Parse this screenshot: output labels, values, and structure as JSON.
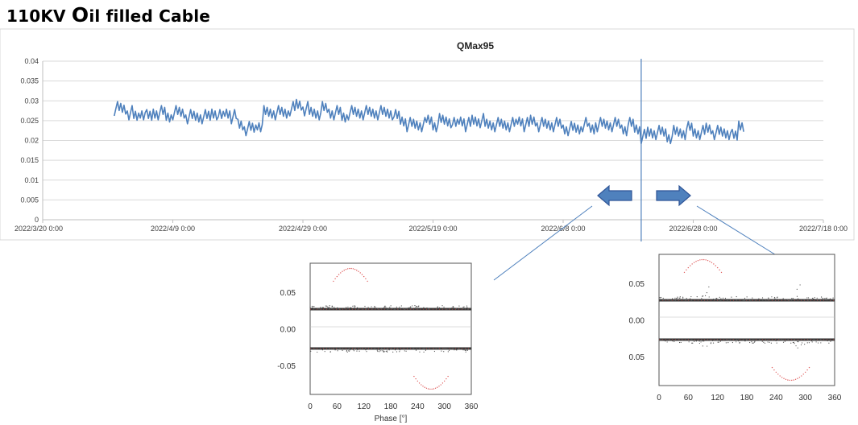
{
  "slide": {
    "title_prefix": "110KV ",
    "title_o": "O",
    "title_suffix": "il filled Cable"
  },
  "chart_data": [
    {
      "type": "line",
      "title": "QMax95",
      "xlabel": "",
      "ylabel": "",
      "x_range": [
        "2022/3/20 0:00",
        "2022/7/18 0:00"
      ],
      "x_ticks": [
        "2022/3/20 0:00",
        "2022/4/9 0:00",
        "2022/4/29 0:00",
        "2022/5/19 0:00",
        "2022/6/8 0:00",
        "2022/6/28 0:00",
        "2022/7/18 0:00"
      ],
      "ylim": [
        0,
        0.04
      ],
      "y_ticks": [
        "0",
        "0.005",
        "0.01",
        "0.015",
        "0.02",
        "0.025",
        "0.03",
        "0.035",
        "0.04"
      ],
      "grid": "horizontal",
      "line_color": "#4F81BD",
      "marker_line_date": "2022/6/20",
      "series": [
        {
          "name": "",
          "points": [
            [
              "2022/3/31",
              0.028
            ],
            [
              "2022/4/1",
              0.028
            ],
            [
              "2022/4/2",
              0.027
            ],
            [
              "2022/4/3",
              0.026
            ],
            [
              "2022/4/4",
              0.027
            ],
            [
              "2022/4/5",
              0.026
            ],
            [
              "2022/4/6",
              0.027
            ],
            [
              "2022/4/7",
              0.027
            ],
            [
              "2022/4/8",
              0.026
            ],
            [
              "2022/4/9",
              0.027
            ],
            [
              "2022/4/10",
              0.027
            ],
            [
              "2022/4/11",
              0.026
            ],
            [
              "2022/4/12",
              0.026
            ],
            [
              "2022/4/13",
              0.026
            ],
            [
              "2022/4/14",
              0.026
            ],
            [
              "2022/4/15",
              0.027
            ],
            [
              "2022/4/16",
              0.026
            ],
            [
              "2022/4/17",
              0.027
            ],
            [
              "2022/4/18",
              0.026
            ],
            [
              "2022/4/19",
              0.024
            ],
            [
              "2022/4/20",
              0.023
            ],
            [
              "2022/4/21",
              0.023
            ],
            [
              "2022/4/22",
              0.024
            ],
            [
              "2022/4/23",
              0.027
            ],
            [
              "2022/4/24",
              0.027
            ],
            [
              "2022/4/25",
              0.027
            ],
            [
              "2022/4/26",
              0.027
            ],
            [
              "2022/4/27",
              0.028
            ],
            [
              "2022/4/28",
              0.029
            ],
            [
              "2022/4/29",
              0.028
            ],
            [
              "2022/4/30",
              0.027
            ],
            [
              "2022/5/1",
              0.027
            ],
            [
              "2022/5/2",
              0.028
            ],
            [
              "2022/5/3",
              0.027
            ],
            [
              "2022/5/4",
              0.027
            ],
            [
              "2022/5/5",
              0.026
            ],
            [
              "2022/5/6",
              0.027
            ],
            [
              "2022/5/7",
              0.027
            ],
            [
              "2022/5/8",
              0.027
            ],
            [
              "2022/5/9",
              0.027
            ],
            [
              "2022/5/10",
              0.027
            ],
            [
              "2022/5/11",
              0.027
            ],
            [
              "2022/5/12",
              0.027
            ],
            [
              "2022/5/13",
              0.026
            ],
            [
              "2022/5/14",
              0.025
            ],
            [
              "2022/5/15",
              0.024
            ],
            [
              "2022/5/16",
              0.024
            ],
            [
              "2022/5/17",
              0.024
            ],
            [
              "2022/5/18",
              0.025
            ],
            [
              "2022/5/19",
              0.024
            ],
            [
              "2022/5/20",
              0.025
            ],
            [
              "2022/5/21",
              0.025
            ],
            [
              "2022/5/22",
              0.024
            ],
            [
              "2022/5/23",
              0.025
            ],
            [
              "2022/5/24",
              0.024
            ],
            [
              "2022/5/25",
              0.025
            ],
            [
              "2022/5/26",
              0.025
            ],
            [
              "2022/5/27",
              0.024
            ],
            [
              "2022/5/28",
              0.024
            ],
            [
              "2022/5/29",
              0.024
            ],
            [
              "2022/5/30",
              0.024
            ],
            [
              "2022/5/31",
              0.024
            ],
            [
              "2022/6/1",
              0.025
            ],
            [
              "2022/6/2",
              0.024
            ],
            [
              "2022/6/3",
              0.025
            ],
            [
              "2022/6/4",
              0.024
            ],
            [
              "2022/6/5",
              0.024
            ],
            [
              "2022/6/6",
              0.024
            ],
            [
              "2022/6/7",
              0.024
            ],
            [
              "2022/6/8",
              0.023
            ],
            [
              "2022/6/9",
              0.023
            ],
            [
              "2022/6/10",
              0.023
            ],
            [
              "2022/6/11",
              0.024
            ],
            [
              "2022/6/12",
              0.023
            ],
            [
              "2022/6/13",
              0.024
            ],
            [
              "2022/6/14",
              0.024
            ],
            [
              "2022/6/15",
              0.024
            ],
            [
              "2022/6/16",
              0.024
            ],
            [
              "2022/6/17",
              0.023
            ],
            [
              "2022/6/18",
              0.024
            ],
            [
              "2022/6/19",
              0.023
            ],
            [
              "2022/6/20",
              0.021
            ],
            [
              "2022/6/21",
              0.022
            ],
            [
              "2022/6/22",
              0.022
            ],
            [
              "2022/6/23",
              0.022
            ],
            [
              "2022/6/24",
              0.021
            ],
            [
              "2022/6/25",
              0.022
            ],
            [
              "2022/6/26",
              0.022
            ],
            [
              "2022/6/27",
              0.023
            ],
            [
              "2022/6/28",
              0.022
            ],
            [
              "2022/6/29",
              0.022
            ],
            [
              "2022/6/30",
              0.023
            ],
            [
              "2022/7/1",
              0.022
            ],
            [
              "2022/7/2",
              0.022
            ],
            [
              "2022/7/3",
              0.022
            ],
            [
              "2022/7/4",
              0.021
            ],
            [
              "2022/7/5",
              0.024
            ]
          ]
        }
      ]
    },
    {
      "type": "scatter",
      "title": "",
      "xlabel": "Phase [°]",
      "ylabel": "",
      "xlim": [
        0,
        360
      ],
      "x_ticks": [
        "0",
        "60",
        "120",
        "180",
        "240",
        "300",
        "360"
      ],
      "y_ticks": [
        "0.05",
        "0.00",
        "-0.05"
      ],
      "series": [
        {
          "name": "",
          "description": "flat bands near +0.02 and -0.02 across all phases"
        }
      ]
    },
    {
      "type": "scatter",
      "title": "",
      "xlabel": "",
      "ylabel": "",
      "xlim": [
        0,
        360
      ],
      "x_ticks": [
        "0",
        "60",
        "120",
        "180",
        "240",
        "300",
        "360"
      ],
      "y_ticks": [
        "0.05",
        "0.00",
        "0.05"
      ],
      "series": [
        {
          "name": "",
          "description": "bands near +0.02 and -0.02 with bursts near 100° and 290°"
        }
      ]
    }
  ]
}
